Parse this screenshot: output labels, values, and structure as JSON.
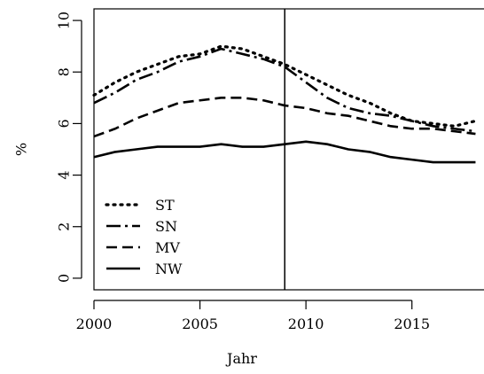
{
  "chart_data": {
    "type": "line",
    "xlabel": "Jahr",
    "ylabel": "%",
    "xlim": [
      2000,
      2018
    ],
    "ylim": [
      0,
      10
    ],
    "x_ticks": [
      "2000",
      "2005",
      "2010",
      "2015"
    ],
    "y_ticks": [
      "0",
      "2",
      "4",
      "6",
      "8",
      "10"
    ],
    "vline_x": 2009,
    "legend": {
      "position": "bottom-left",
      "entries": [
        "ST",
        "SN",
        "MV",
        "NW"
      ]
    },
    "x": [
      2000,
      2001,
      2002,
      2003,
      2004,
      2005,
      2006,
      2007,
      2008,
      2009,
      2010,
      2011,
      2012,
      2013,
      2014,
      2015,
      2016,
      2017,
      2018
    ],
    "series": [
      {
        "name": "ST",
        "style": "dotted",
        "values": [
          7.1,
          7.6,
          8.0,
          8.3,
          8.6,
          8.7,
          9.0,
          8.9,
          8.6,
          8.3,
          7.9,
          7.5,
          7.1,
          6.8,
          6.4,
          6.1,
          6.0,
          5.9,
          6.1
        ]
      },
      {
        "name": "SN",
        "style": "dashdot",
        "values": [
          6.8,
          7.2,
          7.7,
          8.0,
          8.4,
          8.6,
          8.9,
          8.7,
          8.5,
          8.2,
          7.6,
          7.0,
          6.6,
          6.4,
          6.3,
          6.1,
          5.9,
          5.8,
          5.7
        ]
      },
      {
        "name": "MV",
        "style": "dashed",
        "values": [
          5.5,
          5.8,
          6.2,
          6.5,
          6.8,
          6.9,
          7.0,
          7.0,
          6.9,
          6.7,
          6.6,
          6.4,
          6.3,
          6.1,
          5.9,
          5.8,
          5.8,
          5.7,
          5.6
        ]
      },
      {
        "name": "NW",
        "style": "solid",
        "values": [
          4.7,
          4.9,
          5.0,
          5.1,
          5.1,
          5.1,
          5.2,
          5.1,
          5.1,
          5.2,
          5.3,
          5.2,
          5.0,
          4.9,
          4.7,
          4.6,
          4.5,
          4.5,
          4.5
        ]
      }
    ]
  }
}
